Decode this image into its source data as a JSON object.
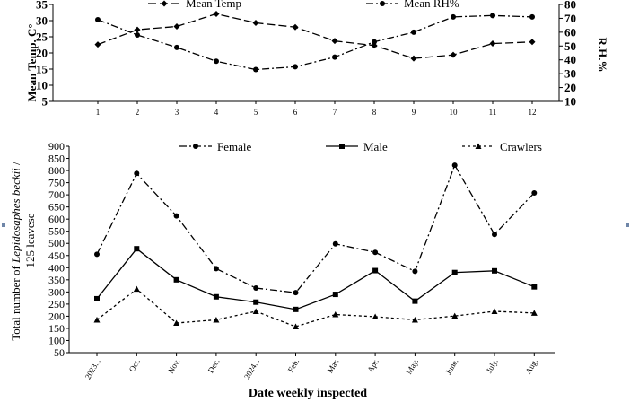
{
  "chart_data": [
    {
      "type": "line",
      "title": "",
      "xlabel": "",
      "ylabel": "Mean Temp. C°",
      "y2label": "R.H.%",
      "categories": [
        "1",
        "2",
        "3",
        "4",
        "5",
        "6",
        "7",
        "8",
        "9",
        "10",
        "11",
        "12"
      ],
      "ylim": [
        5,
        35
      ],
      "yticks": [
        "5",
        "10",
        "15",
        "20",
        "25",
        "30",
        "35"
      ],
      "y2lim": [
        10,
        80
      ],
      "y2ticks": [
        "10",
        "20",
        "30",
        "40",
        "50",
        "60",
        "70",
        "80"
      ],
      "legend_position": "top",
      "series": [
        {
          "name": "Mean Temp",
          "axis": "left",
          "style": "dashed",
          "marker": "diamond",
          "color": "#000000",
          "values": [
            22.6,
            27.2,
            28.2,
            32.1,
            29.3,
            28.0,
            23.7,
            22.3,
            18.3,
            19.4,
            22.9,
            23.4
          ]
        },
        {
          "name": "Mean RH%",
          "axis": "right",
          "style": "dashdot",
          "marker": "circle",
          "color": "#000000",
          "values": [
            69,
            58,
            49,
            39,
            33,
            35,
            42,
            53,
            60,
            71,
            72,
            71
          ]
        }
      ]
    },
    {
      "type": "line",
      "title": "",
      "xlabel": "Date weekly inspected",
      "ylabel": "Total number of Lepidosaphes beckii / 125 leavese",
      "ylabel_parts": [
        "Total number of ",
        "Lepidosaphes beckii",
        " /",
        "125 leavese"
      ],
      "categories": [
        "2023...",
        "Oct.",
        "Nov.",
        "Dec.",
        "2024...",
        "Feb.",
        "Mar.",
        "Apr.",
        "May.",
        "June.",
        "July.",
        "Aug."
      ],
      "ylim": [
        50,
        900
      ],
      "yticks": [
        "50",
        "100",
        "150",
        "200",
        "250",
        "300",
        "350",
        "400",
        "450",
        "500",
        "550",
        "600",
        "650",
        "700",
        "750",
        "800",
        "850",
        "900"
      ],
      "legend_position": "top",
      "series": [
        {
          "name": "Female",
          "style": "dashdot",
          "marker": "circle",
          "color": "#000000",
          "values": [
            455,
            788,
            613,
            396,
            316,
            297,
            498,
            463,
            385,
            822,
            537,
            708
          ]
        },
        {
          "name": "Male",
          "style": "solid",
          "marker": "square",
          "color": "#000000",
          "values": [
            272,
            478,
            350,
            280,
            258,
            228,
            290,
            388,
            262,
            380,
            387,
            321
          ]
        },
        {
          "name": "Crawlers",
          "style": "dotted",
          "marker": "triangle",
          "color": "#000000",
          "values": [
            185,
            312,
            172,
            185,
            220,
            157,
            207,
            198,
            185,
            201,
            220,
            213
          ]
        }
      ]
    }
  ]
}
